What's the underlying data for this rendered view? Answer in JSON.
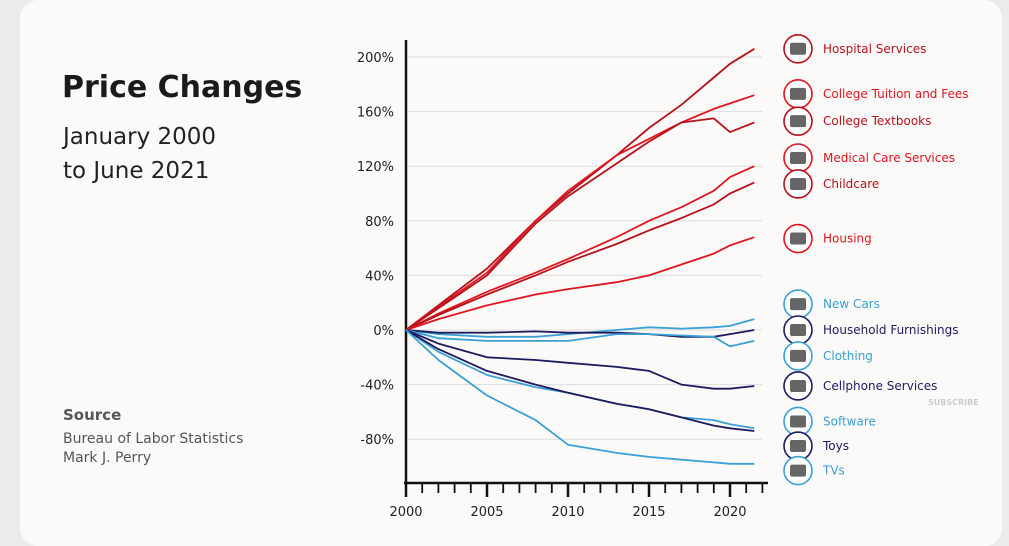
{
  "title": "Price Changes",
  "subtitle_line1": "January 2000",
  "subtitle_line2": "to June 2021",
  "source_heading": "Source",
  "source_line1": "Bureau of Labor Statistics",
  "source_line2": "Mark J. Perry",
  "watermark": "SUBSCRIBE",
  "chart_data": {
    "type": "line",
    "title": "Price Changes January 2000 to June 2021",
    "xlabel": "",
    "ylabel": "",
    "xlim": [
      2000,
      2021.5
    ],
    "ylim": [
      -100,
      210
    ],
    "yticks": [
      200,
      160,
      120,
      80,
      40,
      0,
      -40,
      -80
    ],
    "ytick_labels": [
      "200%",
      "160%",
      "120%",
      "80%",
      "40%",
      "0%",
      "-40%",
      "-80%"
    ],
    "xticks": [
      2000,
      2005,
      2010,
      2015,
      2020
    ],
    "xtick_labels": [
      "2000",
      "2005",
      "2010",
      "2015",
      "2020"
    ],
    "grid": true,
    "x": [
      2000,
      2002,
      2005,
      2008,
      2010,
      2013,
      2015,
      2017,
      2019,
      2020,
      2021.5
    ],
    "series": [
      {
        "name": "Hospital Services",
        "color": "#b5121b",
        "legend_y": 206,
        "values": [
          0,
          18,
          45,
          80,
          100,
          128,
          148,
          165,
          185,
          195,
          206
        ]
      },
      {
        "name": "College Tuition and Fees",
        "color": "#e0151f",
        "legend_y": 173,
        "values": [
          0,
          17,
          42,
          80,
          102,
          128,
          140,
          152,
          162,
          166,
          172
        ]
      },
      {
        "name": "College Textbooks",
        "color": "#b5121b",
        "legend_y": 153,
        "values": [
          0,
          16,
          40,
          78,
          98,
          122,
          138,
          152,
          155,
          145,
          152
        ]
      },
      {
        "name": "Medical Care Services",
        "color": "#e0151f",
        "legend_y": 126,
        "values": [
          0,
          12,
          28,
          42,
          52,
          68,
          80,
          90,
          102,
          112,
          120
        ]
      },
      {
        "name": "Childcare",
        "color": "#b5121b",
        "legend_y": 107,
        "values": [
          0,
          11,
          26,
          40,
          50,
          63,
          73,
          82,
          92,
          100,
          108
        ]
      },
      {
        "name": "Housing",
        "color": "#e0151f",
        "legend_y": 67,
        "values": [
          0,
          8,
          18,
          26,
          30,
          35,
          40,
          48,
          56,
          62,
          68
        ]
      },
      {
        "name": "New Cars",
        "color": "#3aa0d5",
        "legend_y": 19,
        "values": [
          0,
          -3,
          -5,
          -5,
          -3,
          0,
          2,
          1,
          2,
          3,
          8
        ]
      },
      {
        "name": "Household Furnishings",
        "color": "#1d1b5e",
        "legend_y": 0,
        "values": [
          0,
          -2,
          -2,
          -1,
          -2,
          -2,
          -3,
          -5,
          -5,
          -3,
          0
        ]
      },
      {
        "name": "Clothing",
        "color": "#3aa0d5",
        "legend_y": -19,
        "values": [
          0,
          -6,
          -8,
          -8,
          -8,
          -3,
          -3,
          -4,
          -5,
          -12,
          -8
        ]
      },
      {
        "name": "Cellphone Services",
        "color": "#1d1b5e",
        "legend_y": -41,
        "values": [
          0,
          -10,
          -20,
          -22,
          -24,
          -27,
          -30,
          -40,
          -43,
          -43,
          -41
        ]
      },
      {
        "name": "Software",
        "color": "#3aa0d5",
        "legend_y": -67,
        "values": [
          0,
          -16,
          -33,
          -42,
          -46,
          -54,
          -58,
          -64,
          -66,
          -69,
          -72
        ]
      },
      {
        "name": "Toys",
        "color": "#1d1b5e",
        "legend_y": -85,
        "values": [
          0,
          -14,
          -30,
          -40,
          -46,
          -54,
          -58,
          -64,
          -70,
          -72,
          -74
        ]
      },
      {
        "name": "TVs",
        "color": "#3aa0d5",
        "legend_y": -103,
        "values": [
          0,
          -22,
          -48,
          -66,
          -84,
          -90,
          -93,
          -95,
          -97,
          -98,
          -98
        ]
      }
    ]
  }
}
